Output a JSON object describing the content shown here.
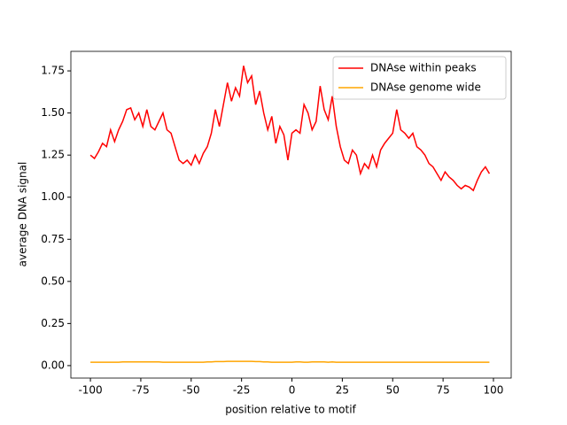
{
  "chart_data": {
    "type": "line",
    "xlabel": "position relative to motif",
    "ylabel": "average DNA signal",
    "x": [
      -100,
      -98,
      -96,
      -94,
      -92,
      -90,
      -88,
      -86,
      -84,
      -82,
      -80,
      -78,
      -76,
      -74,
      -72,
      -70,
      -68,
      -66,
      -64,
      -62,
      -60,
      -58,
      -56,
      -54,
      -52,
      -50,
      -48,
      -46,
      -44,
      -42,
      -40,
      -38,
      -36,
      -34,
      -32,
      -30,
      -28,
      -26,
      -24,
      -22,
      -20,
      -18,
      -16,
      -14,
      -12,
      -10,
      -8,
      -6,
      -4,
      -2,
      0,
      2,
      4,
      6,
      8,
      10,
      12,
      14,
      16,
      18,
      20,
      22,
      24,
      26,
      28,
      30,
      32,
      34,
      36,
      38,
      40,
      42,
      44,
      46,
      48,
      50,
      52,
      54,
      56,
      58,
      60,
      62,
      64,
      66,
      68,
      70,
      72,
      74,
      76,
      78,
      80,
      82,
      84,
      86,
      88,
      90,
      92,
      94,
      96,
      98
    ],
    "series": [
      {
        "name": "DNAse within peaks",
        "color": "#ff0000",
        "values": [
          1.25,
          1.23,
          1.27,
          1.32,
          1.3,
          1.4,
          1.33,
          1.4,
          1.45,
          1.52,
          1.53,
          1.46,
          1.5,
          1.42,
          1.52,
          1.42,
          1.4,
          1.45,
          1.5,
          1.4,
          1.38,
          1.3,
          1.22,
          1.2,
          1.22,
          1.19,
          1.25,
          1.2,
          1.26,
          1.3,
          1.38,
          1.52,
          1.42,
          1.55,
          1.68,
          1.57,
          1.65,
          1.6,
          1.78,
          1.68,
          1.72,
          1.55,
          1.63,
          1.5,
          1.4,
          1.48,
          1.32,
          1.42,
          1.37,
          1.22,
          1.38,
          1.4,
          1.38,
          1.55,
          1.5,
          1.4,
          1.45,
          1.66,
          1.52,
          1.46,
          1.6,
          1.42,
          1.3,
          1.22,
          1.2,
          1.28,
          1.25,
          1.14,
          1.2,
          1.17,
          1.25,
          1.18,
          1.28,
          1.32,
          1.35,
          1.38,
          1.52,
          1.4,
          1.38,
          1.35,
          1.38,
          1.3,
          1.28,
          1.25,
          1.2,
          1.18,
          1.14,
          1.1,
          1.15,
          1.12,
          1.1,
          1.07,
          1.05,
          1.07,
          1.06,
          1.04,
          1.1,
          1.15,
          1.18,
          1.14
        ]
      },
      {
        "name": "DNAse genome wide",
        "color": "#ffa500",
        "values": [
          0.02,
          0.02,
          0.02,
          0.02,
          0.02,
          0.02,
          0.02,
          0.02,
          0.022,
          0.022,
          0.022,
          0.022,
          0.022,
          0.022,
          0.022,
          0.022,
          0.022,
          0.022,
          0.02,
          0.02,
          0.02,
          0.02,
          0.02,
          0.02,
          0.02,
          0.02,
          0.02,
          0.02,
          0.02,
          0.022,
          0.022,
          0.024,
          0.024,
          0.024,
          0.025,
          0.025,
          0.025,
          0.025,
          0.025,
          0.025,
          0.025,
          0.024,
          0.024,
          0.022,
          0.022,
          0.02,
          0.02,
          0.02,
          0.02,
          0.02,
          0.02,
          0.022,
          0.022,
          0.02,
          0.02,
          0.022,
          0.022,
          0.022,
          0.022,
          0.02,
          0.022,
          0.02,
          0.02,
          0.02,
          0.02,
          0.02,
          0.02,
          0.02,
          0.02,
          0.02,
          0.02,
          0.02,
          0.02,
          0.02,
          0.02,
          0.02,
          0.02,
          0.02,
          0.02,
          0.02,
          0.02,
          0.02,
          0.02,
          0.02,
          0.02,
          0.02,
          0.02,
          0.02,
          0.02,
          0.02,
          0.02,
          0.02,
          0.02,
          0.02,
          0.02,
          0.02,
          0.02,
          0.02,
          0.02,
          0.02
        ]
      }
    ],
    "xlim": [
      -109.7,
      108.8
    ],
    "ylim": [
      -0.074,
      1.866
    ],
    "xticks": [
      -100,
      -75,
      -50,
      -25,
      0,
      25,
      50,
      75,
      100
    ],
    "yticks": [
      {
        "value": 0,
        "label": "0.00"
      },
      0.25,
      {
        "value": 0.5,
        "label": "0.50"
      },
      0.75,
      {
        "value": 1,
        "label": "1.00"
      },
      1.25,
      {
        "value": 1.5,
        "label": "1.50"
      },
      1.75
    ],
    "legend": "upper right"
  }
}
